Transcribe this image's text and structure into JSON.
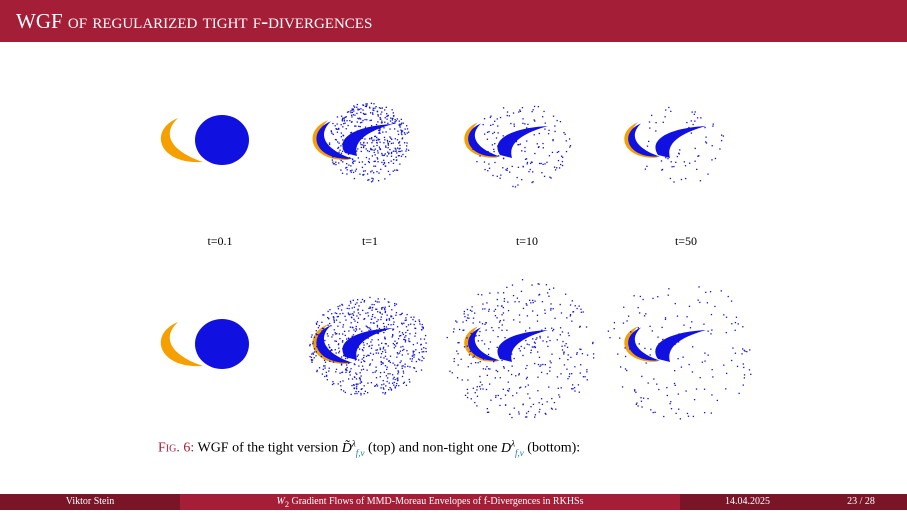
{
  "header": {
    "title": "WGF of regularized tight f-divergences"
  },
  "figure": {
    "labels": [
      "t=0.1",
      "t=1",
      "t=10",
      "t=50"
    ],
    "caption": {
      "label": "Fig. 6:",
      "text_1": "WGF of the tight version",
      "symbol_1": "D̃",
      "symbol_2": "D",
      "superscript": "λ",
      "subscript": "f,ν",
      "text_2": "(top) and non-tight one",
      "text_3": "(bottom):"
    }
  },
  "footer": {
    "author": "Viktor Stein",
    "talk_symbol": "W",
    "talk_symbol_sub": "2",
    "talk_title": "Gradient Flows of MMD-Moreau Envelopes of f-Divergences in RKHSs",
    "date": "14.04.2025",
    "page": "23 / 28"
  }
}
